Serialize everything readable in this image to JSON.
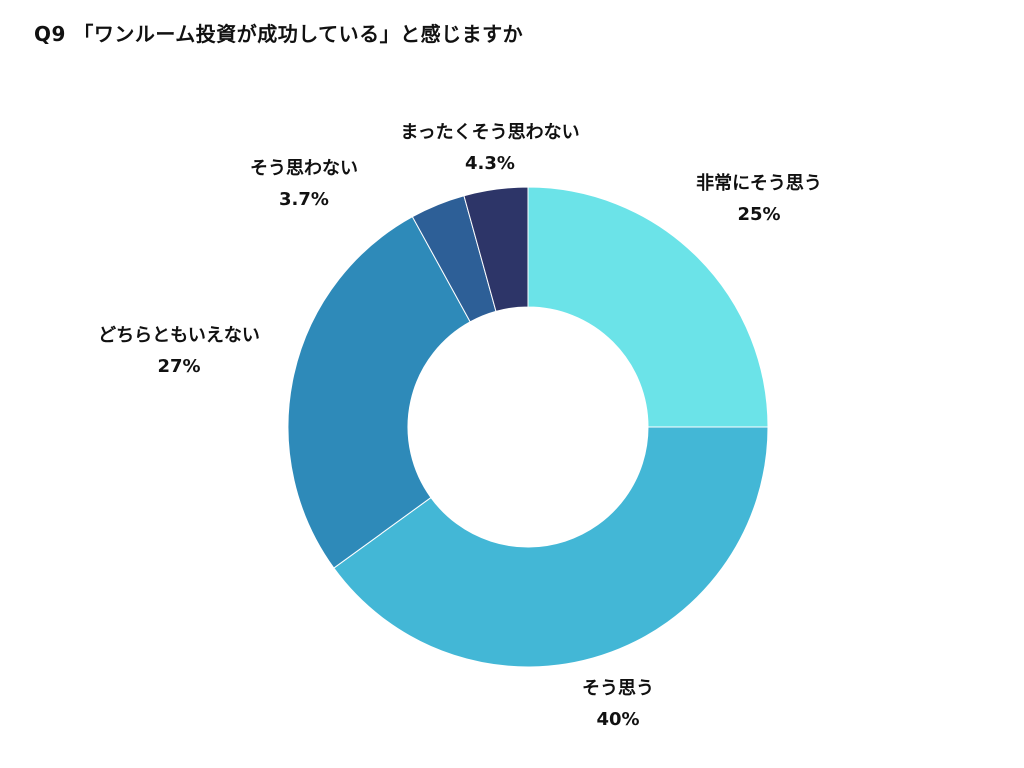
{
  "title": "Q9 「ワンルーム投資が成功している」と感じますか",
  "chart_data": {
    "type": "pie",
    "variant": "donut",
    "title": "Q9 「ワンルーム投資が成功している」と感じますか",
    "start_angle": "12 o'clock",
    "direction": "clockwise",
    "slices": [
      {
        "label": "非常にそう思う",
        "value": 25,
        "value_label": "25%",
        "color": "#6be3e8"
      },
      {
        "label": "そう思う",
        "value": 40,
        "value_label": "40%",
        "color": "#43b7d6"
      },
      {
        "label": "どちらともいえない",
        "value": 27,
        "value_label": "27%",
        "color": "#2e8ab9"
      },
      {
        "label": "そう思わない",
        "value": 3.7,
        "value_label": "3.7%",
        "color": "#2d5f97"
      },
      {
        "label": "まったくそう思わない",
        "value": 4.3,
        "value_label": "4.3%",
        "color": "#2d3568"
      }
    ]
  }
}
